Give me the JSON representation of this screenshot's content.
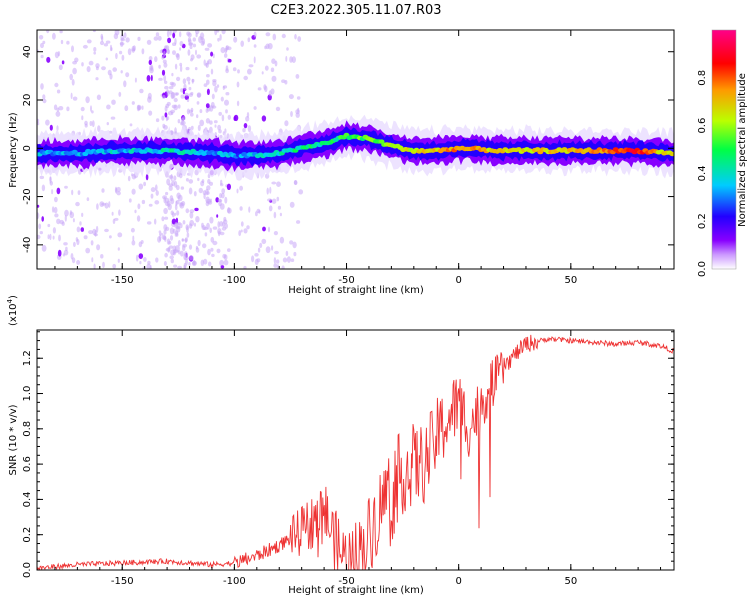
{
  "title": "C2E3.2022.305.11.07.R03",
  "chart_data": [
    {
      "type": "heatmap",
      "xlabel": "Height of straight line (km)",
      "ylabel": "Frequency (Hz)",
      "xlim": [
        -188,
        96
      ],
      "ylim": [
        -50,
        49
      ],
      "xticks": [
        -150,
        -100,
        -50,
        0,
        50
      ],
      "yticks": [
        -40,
        -20,
        0,
        20,
        40
      ],
      "colorbar": {
        "label": "Normalized spectral amplitude",
        "range": [
          0.0,
          1.0
        ],
        "ticks": [
          0.0,
          0.2,
          0.4,
          0.6,
          0.8
        ],
        "tick_labels": [
          "0.0",
          "0.2",
          "0.4",
          "0.6",
          "0.8"
        ],
        "colors": [
          "#ffffff",
          "#8800ff",
          "#2200ff",
          "#00ccff",
          "#00ff44",
          "#bbff00",
          "#ff9900",
          "#ff0000",
          "#ff0088"
        ]
      },
      "ridge": {
        "x": [
          -188,
          -170,
          -150,
          -130,
          -110,
          -100,
          -90,
          -80,
          -70,
          -60,
          -50,
          -40,
          -30,
          -20,
          -10,
          0,
          20,
          50,
          80,
          96
        ],
        "frequency": [
          -2,
          -2,
          -1,
          -1,
          -2,
          -3,
          -3,
          -2,
          0,
          2,
          5,
          4,
          1,
          -1,
          -1,
          0,
          -1,
          -1,
          -1,
          -2
        ],
        "amplitude": [
          0.3,
          0.35,
          0.35,
          0.4,
          0.35,
          0.3,
          0.35,
          0.4,
          0.45,
          0.45,
          0.5,
          0.55,
          0.6,
          0.65,
          0.7,
          0.75,
          0.65,
          0.7,
          0.85,
          0.6
        ]
      }
    },
    {
      "type": "line",
      "xlabel": "Height of straight line (km)",
      "ylabel": "SNR (10 * v/v)",
      "scale_label": "(x10",
      "scale_exp": "4",
      "scale_close": ")",
      "xlim": [
        -188,
        96
      ],
      "ylim": [
        0.0,
        1.36
      ],
      "xticks": [
        -150,
        -100,
        -50,
        0,
        50
      ],
      "yticks": [
        0.0,
        0.2,
        0.4,
        0.6,
        0.8,
        1.0,
        1.2
      ],
      "ytick_labels": [
        "0.0",
        "0.2",
        "0.4",
        "0.6",
        "0.8",
        "1.0",
        "1.2"
      ],
      "series": [
        {
          "name": "SNR",
          "color": "#ee3333",
          "x": [
            -188,
            -170,
            -150,
            -130,
            -110,
            -100,
            -90,
            -80,
            -70,
            -65,
            -60,
            -55,
            -50,
            -45,
            -40,
            -35,
            -30,
            -25,
            -20,
            -15,
            -10,
            -5,
            0,
            5,
            10,
            15,
            20,
            25,
            30,
            40,
            50,
            60,
            70,
            80,
            90,
            96
          ],
          "y": [
            0.01,
            0.03,
            0.04,
            0.05,
            0.03,
            0.04,
            0.08,
            0.14,
            0.22,
            0.28,
            0.35,
            0.15,
            0.05,
            0.08,
            0.2,
            0.35,
            0.5,
            0.55,
            0.6,
            0.6,
            0.75,
            0.85,
            0.95,
            0.8,
            0.95,
            1.05,
            1.15,
            1.22,
            1.28,
            1.31,
            1.3,
            1.29,
            1.28,
            1.29,
            1.27,
            1.24
          ]
        }
      ]
    }
  ]
}
